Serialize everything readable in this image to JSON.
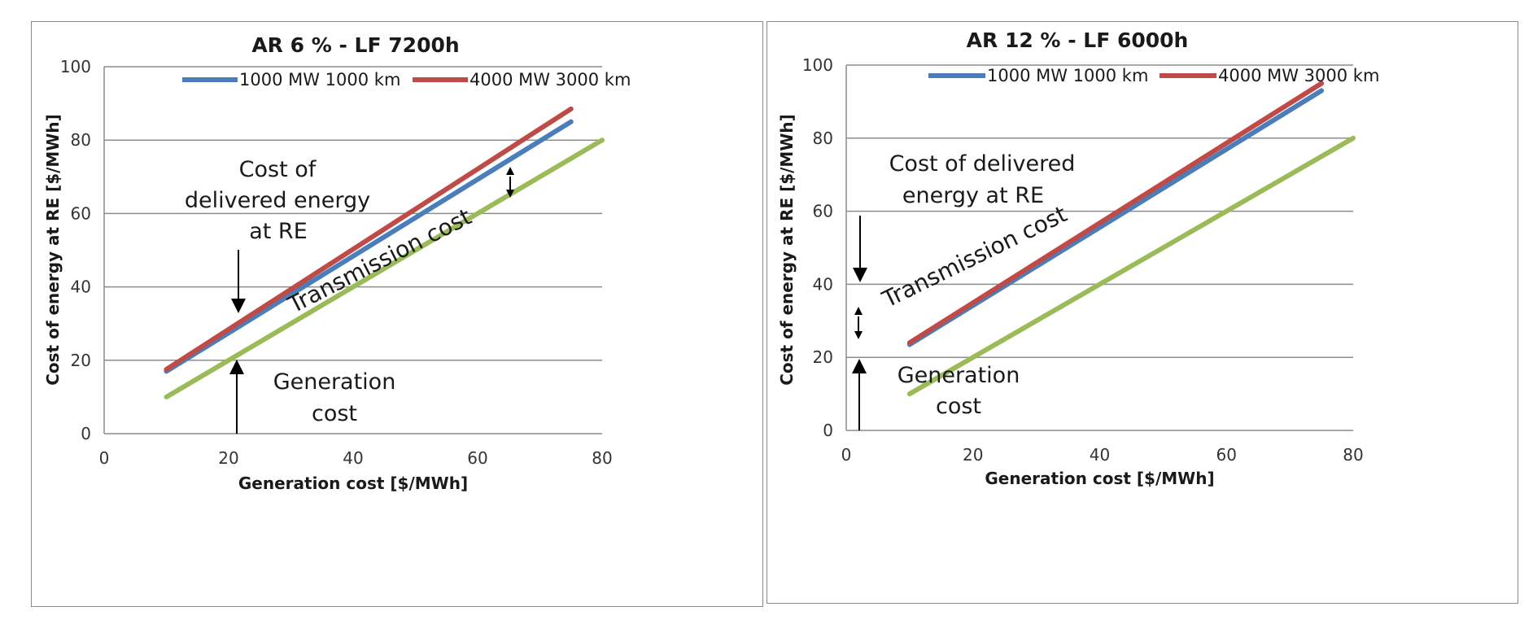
{
  "chart_data": [
    {
      "type": "line",
      "title": "AR 6 % - LF 7200h",
      "xlabel": "Generation cost [$/MWh]",
      "ylabel": "Cost of energy at  RE [$/MWh]",
      "xlim": [
        0,
        80
      ],
      "ylim": [
        0,
        100
      ],
      "x_ticks": [
        "0",
        "20",
        "40",
        "60",
        "80"
      ],
      "y_ticks": [
        "0",
        "20",
        "40",
        "60",
        "80",
        "100"
      ],
      "grid": "horizontal",
      "legend_position": "top",
      "legend": [
        "1000 MW 1000 km",
        "4000 MW 3000 km"
      ],
      "series": [
        {
          "name": "1000 MW 1000 km",
          "color": "#4a7ebb",
          "x": [
            10,
            75
          ],
          "y": [
            17,
            85
          ]
        },
        {
          "name": "4000 MW 3000 km",
          "color": "#be4b48",
          "x": [
            10,
            75
          ],
          "y": [
            17.5,
            88.5
          ]
        },
        {
          "color": "#9bbb59",
          "x": [
            10,
            80
          ],
          "y": [
            10,
            80
          ]
        }
      ],
      "annotations": {
        "delivered": [
          "Cost of",
          "delivered energy",
          "at RE"
        ],
        "transmission": "Transmission cost",
        "generation": [
          "Generation",
          "cost"
        ]
      }
    },
    {
      "type": "line",
      "title": "AR 12 % - LF 6000h",
      "xlabel": "Generation cost [$/MWh]",
      "ylabel": "Cost of energy at  RE [$/MWh]",
      "xlim": [
        0,
        80
      ],
      "ylim": [
        0,
        100
      ],
      "x_ticks": [
        "0",
        "20",
        "40",
        "60",
        "80"
      ],
      "y_ticks": [
        "0",
        "20",
        "40",
        "60",
        "80",
        "100"
      ],
      "grid": "horizontal",
      "legend_position": "top",
      "legend": [
        "1000 MW 1000 km",
        "4000 MW 3000 km"
      ],
      "series": [
        {
          "name": "1000 MW 1000 km",
          "color": "#4a7ebb",
          "x": [
            10,
            75
          ],
          "y": [
            23.5,
            93
          ]
        },
        {
          "name": "4000 MW 3000 km",
          "color": "#be4b48",
          "x": [
            10,
            75
          ],
          "y": [
            24,
            95
          ]
        },
        {
          "color": "#9bbb59",
          "x": [
            10,
            80
          ],
          "y": [
            10,
            80
          ]
        }
      ],
      "annotations": {
        "delivered": [
          "Cost of delivered",
          "energy at RE"
        ],
        "transmission": "Transmission cost",
        "generation": [
          "Generation",
          "cost"
        ]
      }
    }
  ]
}
